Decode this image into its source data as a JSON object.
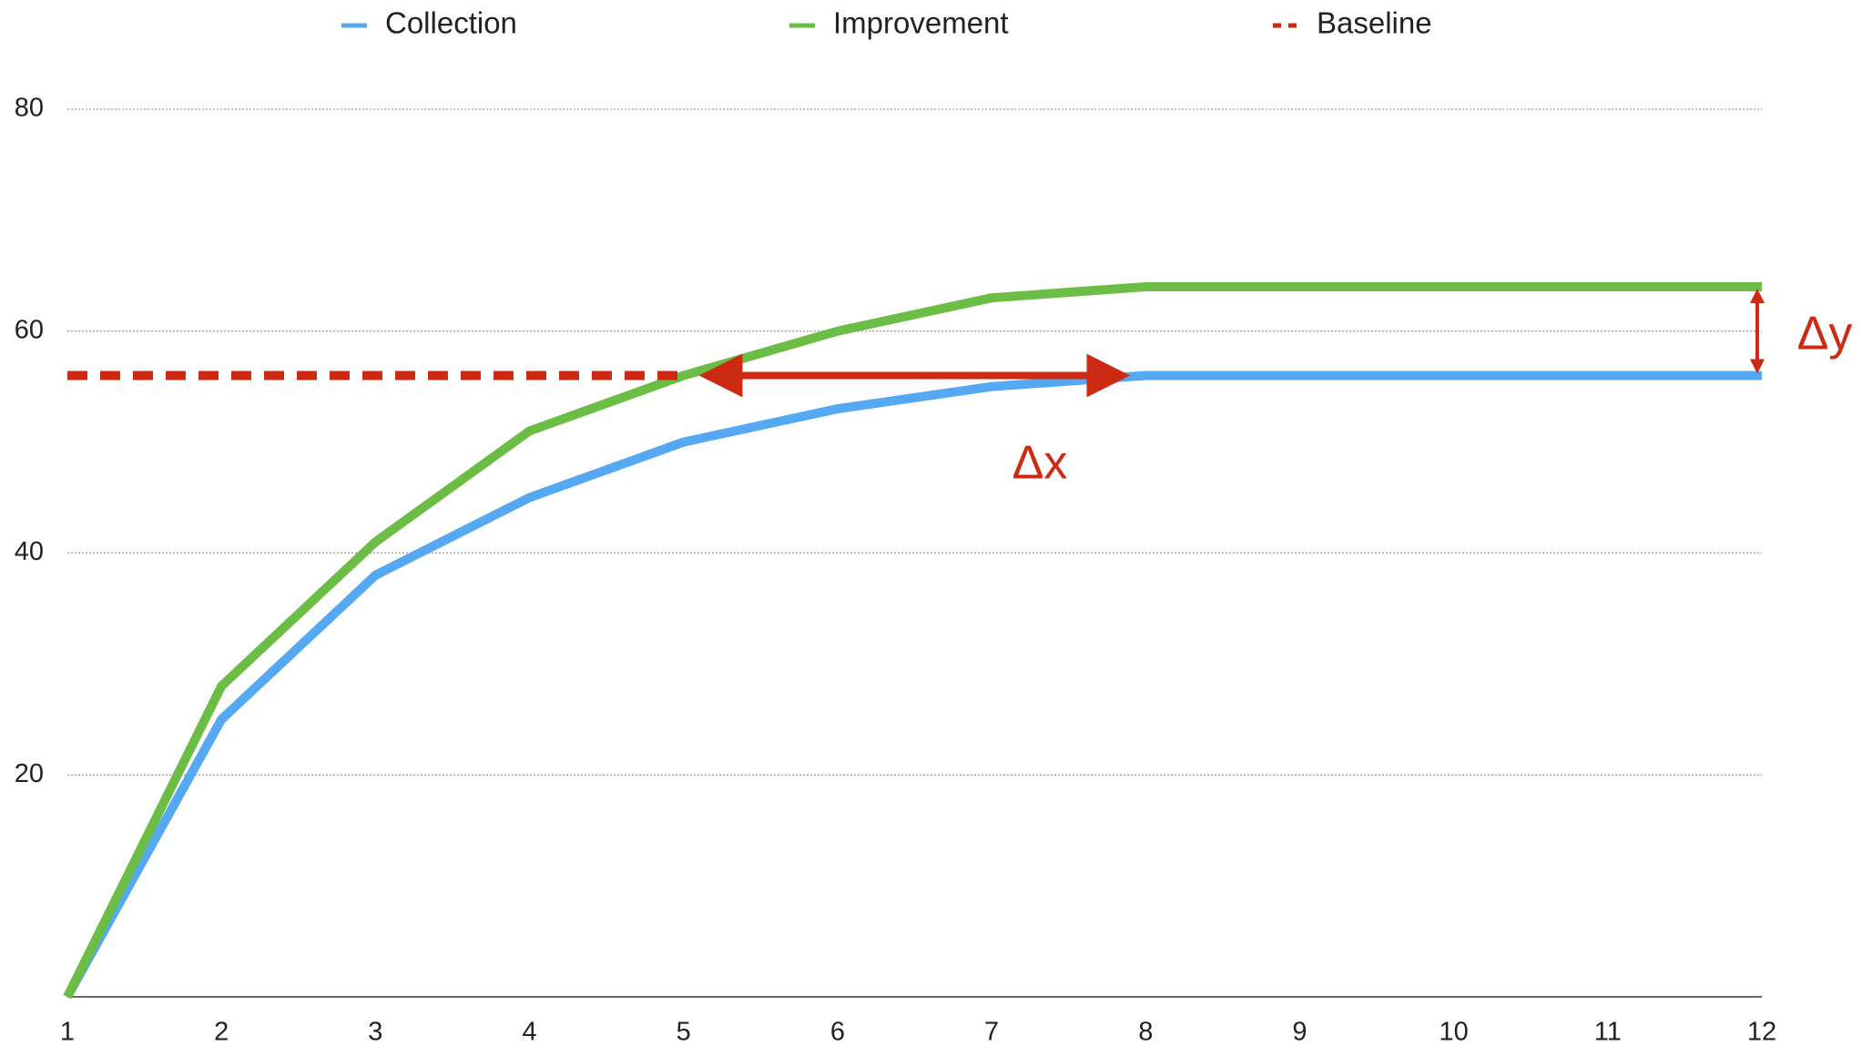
{
  "chart_data": {
    "type": "line",
    "x": [
      1,
      2,
      3,
      4,
      5,
      6,
      7,
      8,
      9,
      10,
      11,
      12
    ],
    "xlim": [
      1,
      12
    ],
    "ylim": [
      0,
      80
    ],
    "yticks": [
      20,
      40,
      60,
      80
    ],
    "grid": true,
    "series": [
      {
        "name": "Collection",
        "color": "#55a8f2",
        "values": [
          0,
          25,
          38,
          45,
          50,
          53,
          55,
          56,
          56,
          56,
          56,
          56
        ]
      },
      {
        "name": "Improvement",
        "color": "#6cbd45",
        "values": [
          0,
          28,
          41,
          51,
          56,
          60,
          63,
          64,
          64,
          64,
          64,
          64
        ]
      },
      {
        "name": "Baseline",
        "color": "#cc2a12",
        "dashed": true,
        "values": [
          56,
          56,
          56,
          56,
          56,
          null,
          null,
          null,
          null,
          null,
          null,
          null
        ]
      }
    ],
    "annotations": [
      "Δx",
      "Δy"
    ]
  }
}
